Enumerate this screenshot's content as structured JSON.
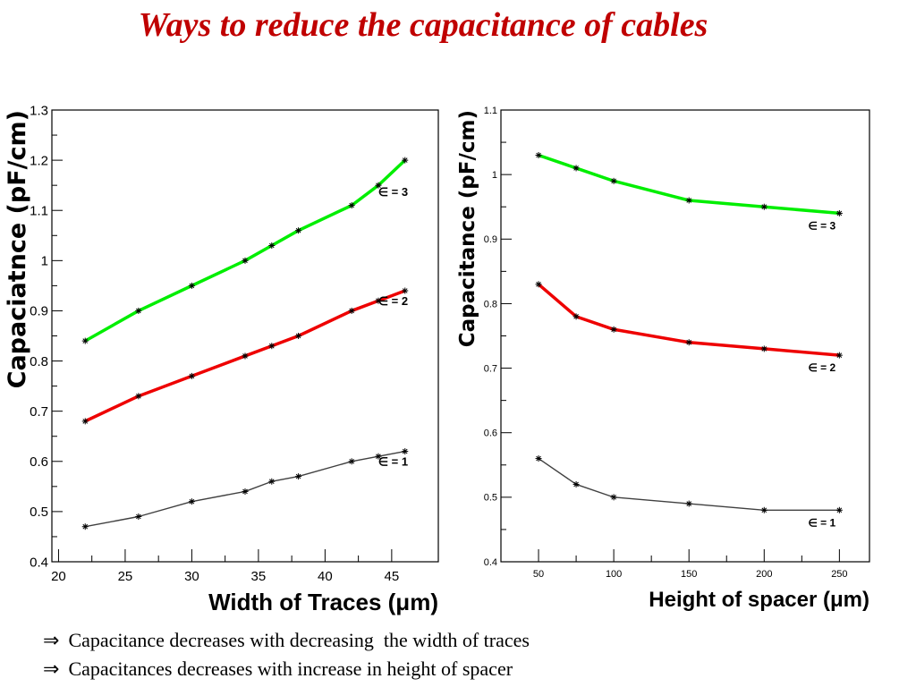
{
  "title": "Ways to reduce the capacitance of cables",
  "bullets": [
    {
      "arrow": "⇒",
      "text": "Capacitance decreases with decreasing  the width of traces"
    },
    {
      "arrow": "⇒",
      "text": "Capacitances decreases with increase in height of spacer"
    }
  ],
  "colors": {
    "eps3": "#00ee00",
    "eps2": "#ee0000",
    "eps1": "#404040",
    "title": "#c00000"
  },
  "chart_data": [
    {
      "type": "line",
      "xlabel": "Width of Traces (μm)",
      "ylabel": "Capaciatnce (pF/cm)",
      "xlim": [
        19.5,
        48.5
      ],
      "ylim": [
        0.4,
        1.3
      ],
      "xticks": [
        20,
        25,
        30,
        35,
        40,
        45
      ],
      "yticks": [
        0.4,
        0.5,
        0.6,
        0.7,
        0.8,
        0.9,
        1,
        1.1,
        1.2,
        1.3
      ],
      "grid": false,
      "series": [
        {
          "name": "∈ = 3",
          "color": "#00ee00",
          "x": [
            22,
            26,
            30,
            34,
            36,
            38,
            42,
            44,
            46
          ],
          "values": [
            0.84,
            0.9,
            0.95,
            1.0,
            1.03,
            1.06,
            1.11,
            1.15,
            1.2
          ]
        },
        {
          "name": "∈ = 2",
          "color": "#ee0000",
          "x": [
            22,
            26,
            30,
            34,
            36,
            38,
            42,
            44,
            46
          ],
          "values": [
            0.68,
            0.73,
            0.77,
            0.81,
            0.83,
            0.85,
            0.9,
            0.92,
            0.94
          ]
        },
        {
          "name": "∈ = 1",
          "color": "#404040",
          "x": [
            22,
            26,
            30,
            34,
            36,
            38,
            42,
            44,
            46
          ],
          "values": [
            0.47,
            0.49,
            0.52,
            0.54,
            0.56,
            0.57,
            0.6,
            0.61,
            0.62
          ]
        }
      ]
    },
    {
      "type": "line",
      "xlabel": "Height of spacer (μm)",
      "ylabel": "Capacitance (pF/cm)",
      "xlim": [
        25,
        270
      ],
      "ylim": [
        0.4,
        1.1
      ],
      "xticks": [
        50,
        100,
        150,
        200,
        250
      ],
      "yticks": [
        0.4,
        0.5,
        0.6,
        0.7,
        0.8,
        0.9,
        1,
        1.1
      ],
      "grid": false,
      "series": [
        {
          "name": "∈ = 3",
          "color": "#00ee00",
          "x": [
            50,
            75,
            100,
            150,
            200,
            250
          ],
          "values": [
            1.03,
            1.01,
            0.99,
            0.96,
            0.95,
            0.94
          ]
        },
        {
          "name": "∈ = 2",
          "color": "#ee0000",
          "x": [
            50,
            75,
            100,
            150,
            200,
            250
          ],
          "values": [
            0.83,
            0.78,
            0.76,
            0.74,
            0.73,
            0.72
          ]
        },
        {
          "name": "∈ = 1",
          "color": "#404040",
          "x": [
            50,
            75,
            100,
            150,
            200,
            250
          ],
          "values": [
            0.56,
            0.52,
            0.5,
            0.49,
            0.48,
            0.48
          ]
        }
      ]
    }
  ]
}
